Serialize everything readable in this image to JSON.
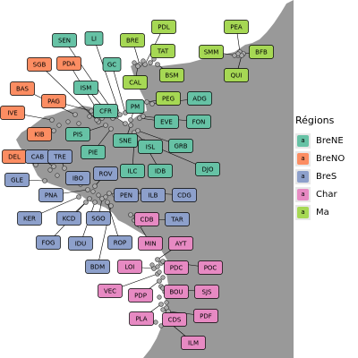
{
  "legend": {
    "title": "Régions",
    "key_glyph": "a",
    "items": [
      {
        "code": "BreNE",
        "label": "BreNE",
        "color": "#66c2a5"
      },
      {
        "code": "BreNO",
        "label": "BreNO",
        "color": "#fc8d62"
      },
      {
        "code": "BreS",
        "label": "BreS",
        "color": "#8da0cb"
      },
      {
        "code": "Char",
        "label": "Char",
        "color": "#e78ac3"
      },
      {
        "code": "Ma",
        "label": "Ma",
        "color": "#a6d854"
      }
    ]
  },
  "map": {
    "land_color": "#999999",
    "sea_color": "#ffffff",
    "point_color": "#aaaaaa"
  },
  "sites": [
    {
      "name": "PDL",
      "region": "Ma"
    },
    {
      "name": "PEA",
      "region": "Ma"
    },
    {
      "name": "BRE",
      "region": "Ma"
    },
    {
      "name": "TAT",
      "region": "Ma"
    },
    {
      "name": "SMM",
      "region": "Ma"
    },
    {
      "name": "BFB",
      "region": "Ma"
    },
    {
      "name": "BSM",
      "region": "Ma"
    },
    {
      "name": "QUI",
      "region": "Ma"
    },
    {
      "name": "CAL",
      "region": "Ma"
    },
    {
      "name": "PEG",
      "region": "Ma"
    },
    {
      "name": "ADG",
      "region": "BreNE"
    },
    {
      "name": "SEN",
      "region": "BreNE"
    },
    {
      "name": "LI",
      "region": "BreNE"
    },
    {
      "name": "GC",
      "region": "BreNE"
    },
    {
      "name": "ISM",
      "region": "BreNE"
    },
    {
      "name": "PM",
      "region": "BreNE"
    },
    {
      "name": "CFR",
      "region": "BreNE"
    },
    {
      "name": "EVE",
      "region": "BreNE"
    },
    {
      "name": "FON",
      "region": "BreNE"
    },
    {
      "name": "PIS",
      "region": "BreNE"
    },
    {
      "name": "SNE",
      "region": "BreNE"
    },
    {
      "name": "ISL",
      "region": "BreNE"
    },
    {
      "name": "GRB",
      "region": "BreNE"
    },
    {
      "name": "PIE",
      "region": "BreNE"
    },
    {
      "name": "ILC",
      "region": "BreNE"
    },
    {
      "name": "IDB",
      "region": "BreNE"
    },
    {
      "name": "DJO",
      "region": "BreNE"
    },
    {
      "name": "SGB",
      "region": "BreNO"
    },
    {
      "name": "PDA",
      "region": "BreNO"
    },
    {
      "name": "BAS",
      "region": "BreNO"
    },
    {
      "name": "PAG",
      "region": "BreNO"
    },
    {
      "name": "IVE",
      "region": "BreNO"
    },
    {
      "name": "KIB",
      "region": "BreNO"
    },
    {
      "name": "DEL",
      "region": "BreNO"
    },
    {
      "name": "CAB",
      "region": "BreS"
    },
    {
      "name": "TRE",
      "region": "BreS"
    },
    {
      "name": "GLE",
      "region": "BreS"
    },
    {
      "name": "IBO",
      "region": "BreS"
    },
    {
      "name": "ROV",
      "region": "BreS"
    },
    {
      "name": "PNA",
      "region": "BreS"
    },
    {
      "name": "PEN",
      "region": "BreS"
    },
    {
      "name": "ILB",
      "region": "BreS"
    },
    {
      "name": "CDG",
      "region": "BreS"
    },
    {
      "name": "KER",
      "region": "BreS"
    },
    {
      "name": "KCD",
      "region": "BreS"
    },
    {
      "name": "SGO",
      "region": "BreS"
    },
    {
      "name": "TAR",
      "region": "BreS"
    },
    {
      "name": "FOG",
      "region": "BreS"
    },
    {
      "name": "IDU",
      "region": "BreS"
    },
    {
      "name": "ROP",
      "region": "BreS"
    },
    {
      "name": "BDM",
      "region": "BreS"
    },
    {
      "name": "CDB",
      "region": "Char"
    },
    {
      "name": "MIN",
      "region": "Char"
    },
    {
      "name": "AYT",
      "region": "Char"
    },
    {
      "name": "LOI",
      "region": "Char"
    },
    {
      "name": "PDC",
      "region": "Char"
    },
    {
      "name": "POC",
      "region": "Char"
    },
    {
      "name": "VEC",
      "region": "Char"
    },
    {
      "name": "PDP",
      "region": "Char"
    },
    {
      "name": "BOU",
      "region": "Char"
    },
    {
      "name": "SJS",
      "region": "Char"
    },
    {
      "name": "PLA",
      "region": "Char"
    },
    {
      "name": "CDS",
      "region": "Char"
    },
    {
      "name": "PDF",
      "region": "Char"
    },
    {
      "name": "ILM",
      "region": "Char"
    }
  ]
}
